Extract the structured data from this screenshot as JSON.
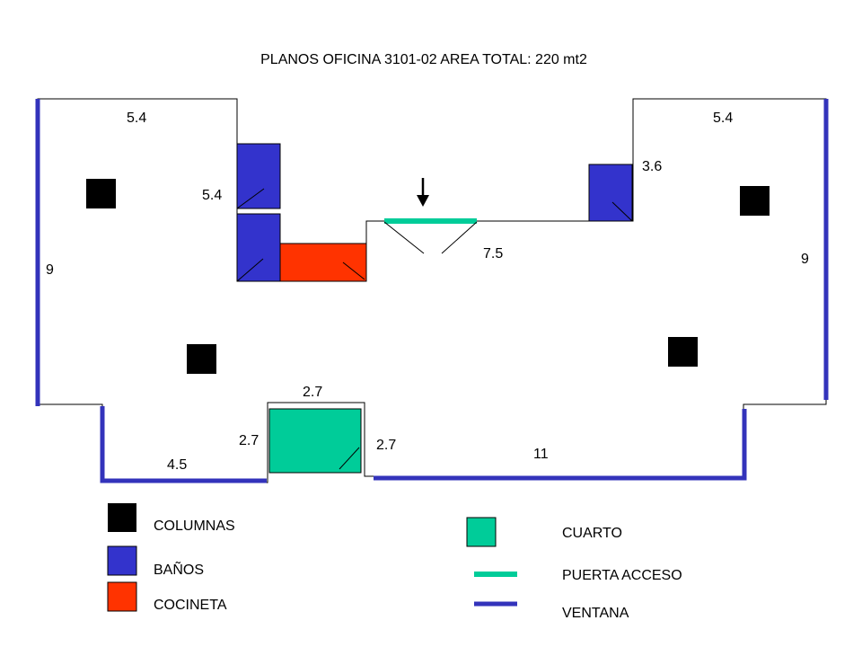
{
  "title": "PLANOS OFICINA 3101-02  AREA TOTAL: 220 mt2",
  "colors": {
    "column": "#000000",
    "bath": "#3333cc",
    "kitchenette": "#ff3300",
    "room": "#00cc99",
    "door": "#00cc99",
    "window": "#3333bb",
    "wall": "#000000"
  },
  "dimensions": {
    "top_left": "5.4",
    "top_right": "5.4",
    "left_inner": "5.4",
    "right_inner": "3.6",
    "left_side": "9",
    "right_side": "9",
    "center": "7.5",
    "room_top": "2.7",
    "room_left": "2.7",
    "room_right": "2.7",
    "bottom_left": "4.5",
    "bottom_right": "11"
  },
  "legend": {
    "columns": "COLUMNAS",
    "baths": "BAÑOS",
    "kitchenette": "COCINETA",
    "room": "CUARTO",
    "door": "PUERTA ACCESO",
    "window": "VENTANA"
  },
  "icons": {
    "entrance": "arrow-down-icon"
  }
}
